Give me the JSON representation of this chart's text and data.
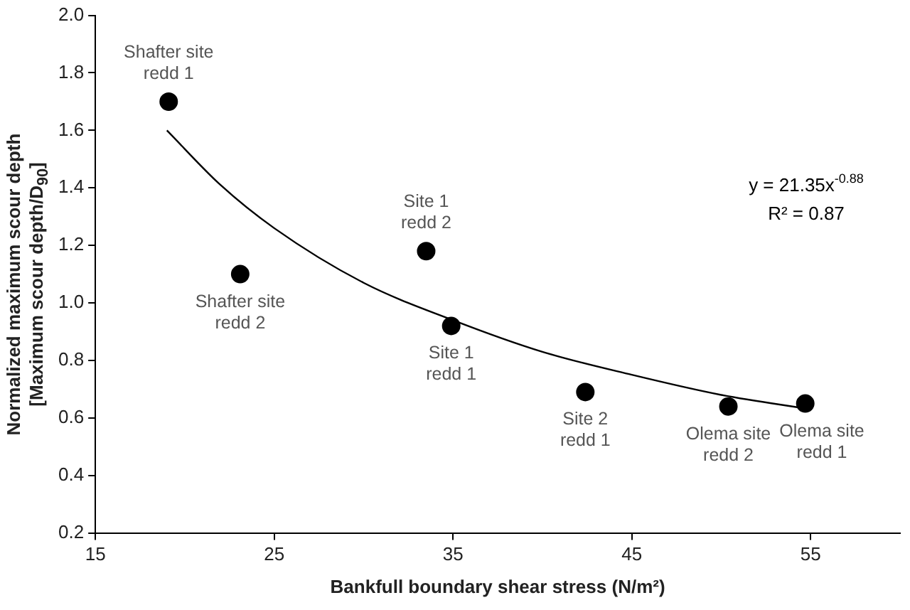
{
  "chart_data": {
    "type": "scatter",
    "xlabel": "Bankfull boundary shear stress (N/m²)",
    "ylabel": "Normalized maximum scour depth\n[Maximum scour depth/D$_{90}$]",
    "xlim": [
      15,
      60
    ],
    "xticks": [
      15,
      25,
      35,
      45,
      55
    ],
    "ylim": [
      0.2,
      2.0
    ],
    "yticks": [
      0.2,
      0.4,
      0.6,
      0.8,
      {
        "value": 1,
        "label": "1.0"
      },
      1.2,
      1.4,
      1.6,
      1.8,
      {
        "value": 2,
        "label": "2.0"
      }
    ],
    "grid": false,
    "legend": false,
    "marker": "circle",
    "series": [
      {
        "color": "#000000",
        "x": [
          19.1,
          23.1,
          33.5,
          34.9,
          42.4,
          50.4,
          54.7
        ],
        "values": [
          1.7,
          1.1,
          1.18,
          0.92,
          0.69,
          0.64,
          0.65
        ]
      },
      {
        "type": "line",
        "color": "#000000",
        "marker": "none",
        "x": [
          19,
          22,
          25,
          30,
          35,
          40,
          45,
          50,
          55
        ],
        "values": [
          1.6,
          1.41,
          1.26,
          1.07,
          0.94,
          0.83,
          0.75,
          0.68,
          0.63
        ]
      }
    ],
    "annotations": [
      {
        "text": "Shafter site\nredd 1",
        "x": 19.1,
        "y": 1.7
      },
      {
        "text": "Shafter site\nredd 2",
        "x": 23.1,
        "y": 1.1
      },
      {
        "text": "Site 1\nredd 2",
        "x": 33.5,
        "y": 1.18
      },
      {
        "text": "Site 1\nredd 1",
        "x": 34.9,
        "y": 0.92
      },
      {
        "text": "Site 2\nredd 1",
        "x": 42.4,
        "y": 0.69
      },
      {
        "text": "Olema site\nredd 2",
        "x": 50.4,
        "y": 0.64
      },
      {
        "text": "Olema site\nredd 1",
        "x": 54.7,
        "y": 0.65
      },
      "y = 21.35x$^{-0.88}$",
      "R² = 0.87"
    ]
  }
}
